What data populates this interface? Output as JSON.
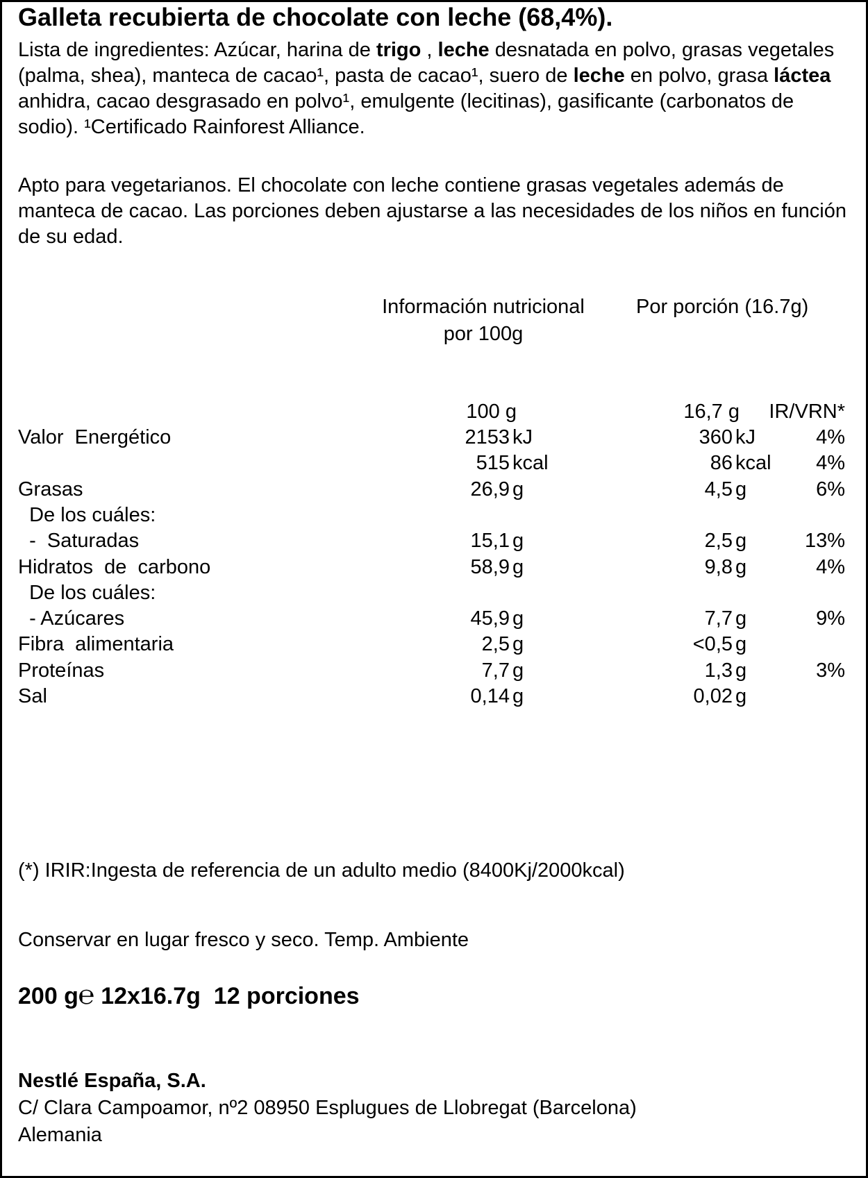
{
  "title": "Galleta recubierta de chocolate con leche (68,4%).",
  "ingredients": {
    "prefix": "Lista de ingredientes: Azúcar, harina de ",
    "trigo": "trigo",
    "part2": " , ",
    "leche1": "leche",
    "part3": " desnatada en polvo, grasas vegetales (palma, shea), manteca de cacao¹, pasta de cacao¹, suero de ",
    "leche2": "leche",
    "part4": " en polvo, grasa ",
    "lactea": "láctea",
    "part5": " anhidra, cacao desgrasado en polvo¹, emulgente (lecitinas), gasificante (carbonatos de sodio). ¹Certificado Rainforest Alliance."
  },
  "note": "Apto para vegetarianos. El chocolate con leche contiene grasas vegetales además de manteca de cacao. Las porciones deben ajustarse a las necesidades de los niños en función de su edad.",
  "nutrition": {
    "header_per100_line1": "Información nutricional",
    "header_per100_line2": "por 100g",
    "header_portion": "Por porción (16.7g)",
    "col_100": "100 g",
    "col_portion": "16,7 g",
    "col_ir": "IR/VRN*",
    "rows": [
      {
        "label": "Valor  Energético",
        "v100": "2153",
        "u100": "kJ",
        "vp": "360",
        "up": "kJ",
        "ir": "4%"
      },
      {
        "label": "",
        "v100": "515",
        "u100": "kcal",
        "vp": "86",
        "up": "kcal",
        "ir": "4%"
      },
      {
        "label": "Grasas",
        "v100": "26,9",
        "u100": "g",
        "vp": "4,5",
        "up": "g",
        "ir": "6%"
      },
      {
        "label": "  De los cuáles:",
        "v100": "",
        "u100": "",
        "vp": "",
        "up": "",
        "ir": ""
      },
      {
        "label": "  -  Saturadas",
        "v100": "15,1",
        "u100": "g",
        "vp": "2,5",
        "up": "g",
        "ir": "13%"
      },
      {
        "label": "Hidratos  de  carbono",
        "v100": "58,9",
        "u100": "g",
        "vp": "9,8",
        "up": "g",
        "ir": "4%"
      },
      {
        "label": "  De los cuáles:",
        "v100": "",
        "u100": "",
        "vp": "",
        "up": "",
        "ir": ""
      },
      {
        "label": "  - Azúcares",
        "v100": "45,9",
        "u100": "g",
        "vp": "7,7",
        "up": "g",
        "ir": "9%"
      },
      {
        "label": "Fibra  alimentaria",
        "v100": "2,5",
        "u100": "g",
        "vp": "<0,5",
        "up": "g",
        "ir": ""
      },
      {
        "label": "Proteínas",
        "v100": "7,7",
        "u100": "g",
        "vp": "1,3",
        "up": "g",
        "ir": "3%"
      },
      {
        "label": "Sal",
        "v100": "0,14",
        "u100": "g",
        "vp": "0,02",
        "up": "g",
        "ir": ""
      }
    ]
  },
  "reference_note": "(*) IRIR:Ingesta de referencia de un adulto medio (8400Kj/2000kcal)",
  "storage": "Conservar en lugar fresco y seco. Temp. Ambiente",
  "quantity": {
    "weight": "200 g",
    "estimated_sign": "℮",
    "units": "12x16.7g",
    "portions": "12 porciones"
  },
  "company": {
    "name": "Nestlé España, S.A.",
    "address": "C/ Clara Campoamor, nº2 08950 Esplugues de Llobregat (Barcelona)",
    "country": "Alemania"
  }
}
